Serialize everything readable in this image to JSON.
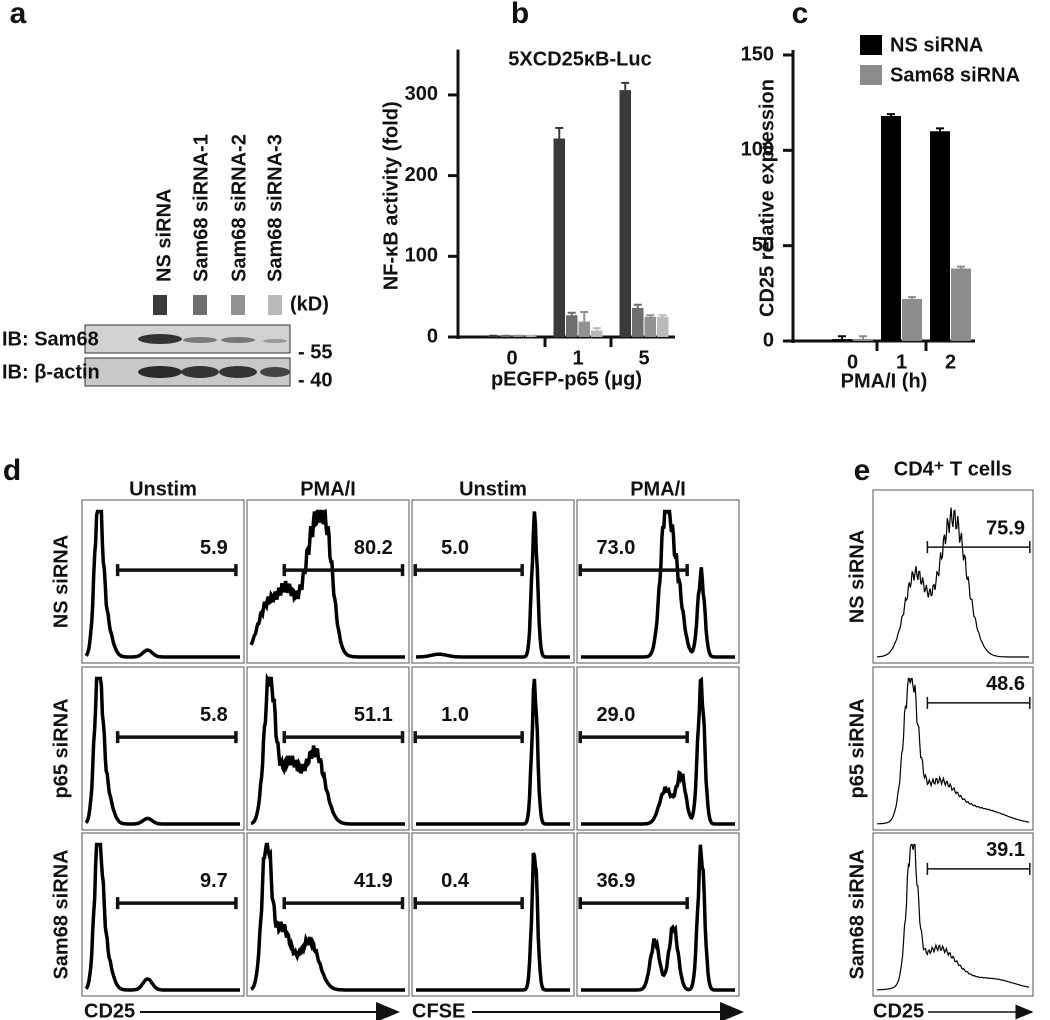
{
  "panel_labels": [
    "a",
    "b",
    "c",
    "d",
    "e"
  ],
  "panel_a": {
    "lanes": [
      "NS siRNA",
      "Sam68 siRNA-1",
      "Sam68 siRNA-2",
      "Sam68 siRNA-3"
    ],
    "unit": "(kD)",
    "blots": [
      "IB: Sam68",
      "IB: β-actin"
    ],
    "markers": [
      "- 55",
      "- 40"
    ]
  },
  "chart_data": [
    {
      "type": "bar",
      "title": "5XCD25κB-Luc",
      "x_label": "pEGFP-p65 (μg)",
      "y_label": "NF-κB activity (fold)",
      "categories": [
        "0",
        "1",
        "5"
      ],
      "series": [
        {
          "color": "#3a3a3a",
          "values": [
            1,
            246,
            306
          ],
          "errors": [
            0.5,
            13,
            9
          ]
        },
        {
          "color": "#6e6e6e",
          "values": [
            1,
            27,
            36
          ],
          "errors": [
            0.5,
            3,
            4
          ]
        },
        {
          "color": "#929292",
          "values": [
            1,
            19,
            25
          ],
          "errors": [
            0.5,
            12,
            2
          ]
        },
        {
          "color": "#bababa",
          "values": [
            1,
            8,
            25
          ],
          "errors": [
            0.5,
            3,
            2
          ]
        }
      ],
      "ylim": [
        0,
        350
      ],
      "yticks": [
        0,
        100,
        200,
        300
      ]
    },
    {
      "type": "bar",
      "x_label": "PMA/I (h)",
      "y_label": "CD25 relative expression",
      "categories": [
        "0",
        "1",
        "2"
      ],
      "series": [
        {
          "name": "NS siRNA",
          "color": "#000000",
          "values": [
            1,
            118,
            110
          ],
          "errors": [
            1.5,
            1,
            1.5
          ]
        },
        {
          "name": "Sam68 siRNA",
          "color": "#8c8c8c",
          "values": [
            0.5,
            22,
            38
          ],
          "errors": [
            2,
            1,
            1
          ]
        }
      ],
      "ylim": [
        0,
        150
      ],
      "yticks": [
        0,
        50,
        100,
        150
      ],
      "legend": "upper right"
    }
  ],
  "panel_d": {
    "columns": [
      "Unstim",
      "PMA/I",
      "Unstim",
      "PMA/I"
    ],
    "rows": [
      "NS siRNA",
      "p65 siRNA",
      "Sam68 siRNA"
    ],
    "gates": [
      [
        "5.9",
        "80.2",
        "5.0",
        "73.0"
      ],
      [
        "5.8",
        "51.1",
        "1.0",
        "29.0"
      ],
      [
        "9.7",
        "41.9",
        "0.4",
        "36.9"
      ]
    ],
    "axis_labels": [
      "CD25",
      "CFSE"
    ]
  },
  "panel_e": {
    "title": "CD4⁺ T cells",
    "rows": [
      "NS siRNA",
      "p65 siRNA",
      "Sam68 siRNA"
    ],
    "gates": [
      "75.9",
      "48.6",
      "39.1"
    ],
    "axis_label": "CD25"
  }
}
